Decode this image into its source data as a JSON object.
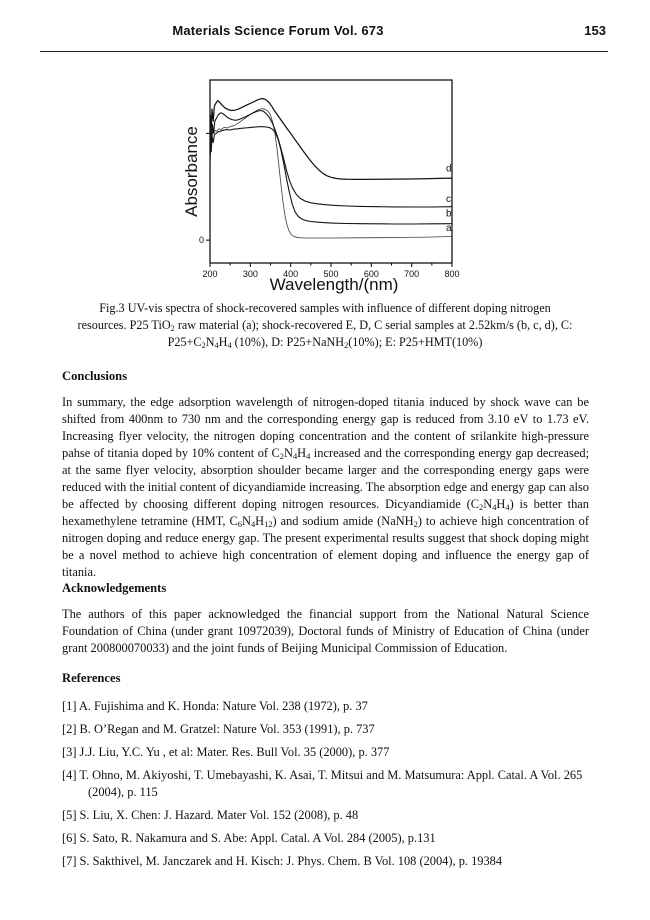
{
  "page": {
    "header": {
      "journal": "Materials Science Forum Vol. 673",
      "page_number": "153"
    }
  },
  "figure": {
    "caption_lines": [
      "Fig.3 UV-vis spectra of shock-recovered samples with influence of different doping nitrogen",
      "resources. P25 TiO~2~ raw material (a); shock-recovered E, D, C serial samples at 2.52km/s (b, c, d), C:",
      "P25+C~2~N~4~H~4~ (10%), D: P25+NaNH~2~(10%); E: P25+HMT(10%)"
    ]
  },
  "chart_data": {
    "type": "line",
    "title": "",
    "xlabel": "Wavelength/(nm)",
    "ylabel": "Absorbance",
    "xlim": [
      200,
      800
    ],
    "ylim": [
      -0.15,
      1.05
    ],
    "x_ticks": [
      200,
      300,
      400,
      500,
      600,
      700,
      800
    ],
    "x_minor_ticks": [
      250,
      350,
      450,
      550,
      650,
      750
    ],
    "y_ticks": [
      {
        "value": 0,
        "label": "0"
      },
      {
        "value": 0.7,
        "label": ""
      }
    ],
    "grid": false,
    "legend_position": "curve-labels-right",
    "axis_color": "#000000",
    "series": [
      {
        "name": "a",
        "description": "P25 TiO2 raw material",
        "color": "#3c3c3c",
        "width": 0.8,
        "label_x": 785,
        "label_y": 0.06,
        "points": [
          [
            200,
            0.52
          ],
          [
            201,
            0.74
          ],
          [
            202,
            0.6
          ],
          [
            203,
            0.72
          ],
          [
            205,
            0.66
          ],
          [
            207,
            0.73
          ],
          [
            210,
            0.7
          ],
          [
            213,
            0.72
          ],
          [
            217,
            0.715
          ],
          [
            222,
            0.73
          ],
          [
            228,
            0.725
          ],
          [
            235,
            0.74
          ],
          [
            242,
            0.735
          ],
          [
            250,
            0.745
          ],
          [
            258,
            0.75
          ],
          [
            266,
            0.76
          ],
          [
            274,
            0.775
          ],
          [
            282,
            0.79
          ],
          [
            290,
            0.805
          ],
          [
            298,
            0.82
          ],
          [
            306,
            0.835
          ],
          [
            314,
            0.848
          ],
          [
            322,
            0.857
          ],
          [
            330,
            0.862
          ],
          [
            337,
            0.858
          ],
          [
            344,
            0.845
          ],
          [
            350,
            0.82
          ],
          [
            356,
            0.77
          ],
          [
            361,
            0.7
          ],
          [
            366,
            0.6
          ],
          [
            371,
            0.48
          ],
          [
            376,
            0.36
          ],
          [
            381,
            0.25
          ],
          [
            386,
            0.16
          ],
          [
            391,
            0.1
          ],
          [
            396,
            0.06
          ],
          [
            402,
            0.035
          ],
          [
            410,
            0.022
          ],
          [
            420,
            0.016
          ],
          [
            440,
            0.014
          ],
          [
            470,
            0.014
          ],
          [
            510,
            0.014
          ],
          [
            560,
            0.015
          ],
          [
            620,
            0.016
          ],
          [
            680,
            0.018
          ],
          [
            740,
            0.02
          ],
          [
            800,
            0.024
          ]
        ]
      },
      {
        "name": "b",
        "description": "shock-recovered sample b at 2.52km/s",
        "color": "#141414",
        "width": 1.1,
        "label_x": 785,
        "label_y": 0.155,
        "points": [
          [
            200,
            0.48
          ],
          [
            201,
            0.66
          ],
          [
            203,
            0.58
          ],
          [
            205,
            0.68
          ],
          [
            208,
            0.64
          ],
          [
            211,
            0.69
          ],
          [
            215,
            0.7
          ],
          [
            220,
            0.71
          ],
          [
            226,
            0.715
          ],
          [
            233,
            0.72
          ],
          [
            241,
            0.725
          ],
          [
            250,
            0.722
          ],
          [
            259,
            0.728
          ],
          [
            268,
            0.73
          ],
          [
            277,
            0.733
          ],
          [
            286,
            0.735
          ],
          [
            295,
            0.737
          ],
          [
            304,
            0.74
          ],
          [
            313,
            0.742
          ],
          [
            322,
            0.744
          ],
          [
            331,
            0.744
          ],
          [
            340,
            0.742
          ],
          [
            348,
            0.737
          ],
          [
            355,
            0.727
          ],
          [
            362,
            0.705
          ],
          [
            369,
            0.66
          ],
          [
            376,
            0.59
          ],
          [
            383,
            0.5
          ],
          [
            390,
            0.4
          ],
          [
            397,
            0.31
          ],
          [
            404,
            0.235
          ],
          [
            411,
            0.185
          ],
          [
            419,
            0.155
          ],
          [
            428,
            0.138
          ],
          [
            438,
            0.128
          ],
          [
            450,
            0.122
          ],
          [
            465,
            0.118
          ],
          [
            485,
            0.114
          ],
          [
            510,
            0.111
          ],
          [
            540,
            0.109
          ],
          [
            575,
            0.108
          ],
          [
            615,
            0.107
          ],
          [
            660,
            0.106
          ],
          [
            705,
            0.106
          ],
          [
            750,
            0.107
          ],
          [
            800,
            0.108
          ]
        ]
      },
      {
        "name": "c",
        "description": "shock-recovered sample c at 2.52km/s",
        "color": "#141414",
        "width": 1.1,
        "label_x": 785,
        "label_y": 0.25,
        "points": [
          [
            200,
            0.52
          ],
          [
            202,
            0.72
          ],
          [
            204,
            0.64
          ],
          [
            206,
            0.76
          ],
          [
            209,
            0.7
          ],
          [
            212,
            0.78
          ],
          [
            216,
            0.8
          ],
          [
            221,
            0.824
          ],
          [
            227,
            0.835
          ],
          [
            233,
            0.828
          ],
          [
            240,
            0.812
          ],
          [
            247,
            0.798
          ],
          [
            255,
            0.79
          ],
          [
            263,
            0.786
          ],
          [
            271,
            0.79
          ],
          [
            280,
            0.8
          ],
          [
            289,
            0.81
          ],
          [
            298,
            0.822
          ],
          [
            307,
            0.834
          ],
          [
            316,
            0.844
          ],
          [
            324,
            0.85
          ],
          [
            332,
            0.846
          ],
          [
            340,
            0.828
          ],
          [
            348,
            0.8
          ],
          [
            355,
            0.765
          ],
          [
            362,
            0.72
          ],
          [
            369,
            0.665
          ],
          [
            376,
            0.6
          ],
          [
            383,
            0.53
          ],
          [
            390,
            0.455
          ],
          [
            397,
            0.39
          ],
          [
            405,
            0.34
          ],
          [
            414,
            0.3
          ],
          [
            424,
            0.273
          ],
          [
            436,
            0.256
          ],
          [
            450,
            0.245
          ],
          [
            466,
            0.238
          ],
          [
            486,
            0.232
          ],
          [
            510,
            0.228
          ],
          [
            540,
            0.224
          ],
          [
            575,
            0.221
          ],
          [
            615,
            0.219
          ],
          [
            660,
            0.218
          ],
          [
            705,
            0.217
          ],
          [
            750,
            0.217
          ],
          [
            800,
            0.219
          ]
        ]
      },
      {
        "name": "d",
        "description": "shock-recovered sample d at 2.52km/s",
        "color": "#141414",
        "width": 1.25,
        "label_x": 785,
        "label_y": 0.45,
        "points": [
          [
            200,
            0.56
          ],
          [
            201,
            0.82
          ],
          [
            203,
            0.72
          ],
          [
            205,
            0.86
          ],
          [
            208,
            0.78
          ],
          [
            211,
            0.88
          ],
          [
            215,
            0.9
          ],
          [
            219,
            0.915
          ],
          [
            224,
            0.905
          ],
          [
            230,
            0.885
          ],
          [
            237,
            0.868
          ],
          [
            245,
            0.856
          ],
          [
            253,
            0.85
          ],
          [
            261,
            0.852
          ],
          [
            269,
            0.858
          ],
          [
            277,
            0.868
          ],
          [
            285,
            0.878
          ],
          [
            293,
            0.888
          ],
          [
            301,
            0.898
          ],
          [
            309,
            0.908
          ],
          [
            317,
            0.918
          ],
          [
            325,
            0.926
          ],
          [
            332,
            0.928
          ],
          [
            339,
            0.92
          ],
          [
            346,
            0.903
          ],
          [
            353,
            0.878
          ],
          [
            360,
            0.848
          ],
          [
            368,
            0.818
          ],
          [
            376,
            0.788
          ],
          [
            384,
            0.758
          ],
          [
            392,
            0.728
          ],
          [
            400,
            0.7
          ],
          [
            410,
            0.662
          ],
          [
            420,
            0.625
          ],
          [
            430,
            0.588
          ],
          [
            440,
            0.552
          ],
          [
            450,
            0.518
          ],
          [
            460,
            0.487
          ],
          [
            470,
            0.46
          ],
          [
            480,
            0.438
          ],
          [
            490,
            0.422
          ],
          [
            500,
            0.412
          ],
          [
            512,
            0.405
          ],
          [
            525,
            0.401
          ],
          [
            540,
            0.399
          ],
          [
            560,
            0.398
          ],
          [
            585,
            0.398
          ],
          [
            615,
            0.399
          ],
          [
            650,
            0.4
          ],
          [
            690,
            0.401
          ],
          [
            730,
            0.403
          ],
          [
            770,
            0.405
          ],
          [
            800,
            0.407
          ]
        ]
      }
    ]
  },
  "sections": {
    "conclusions": {
      "heading": "Conclusions",
      "body": "In summary, the edge adsorption wavelength of nitrogen-doped titania induced by shock wave can be shifted from 400nm to 730 nm and the corresponding energy gap is reduced from 3.10 eV to 1.73 eV. Increasing flyer velocity, the nitrogen doping concentration and the content of srilankite high-pressure pahse of titania doped by 10% content of C~2~N~4~H~4~ increased and the corresponding energy gap decreased; at the same flyer velocity, absorption shoulder became larger and the corresponding energy gaps were reduced with the initial content of dicyandiamide increasing. The absorption edge and energy gap can also be affected by choosing different doping nitrogen resources. Dicyandiamide (C~2~N~4~H~4~) is better than hexamethylene tetramine (HMT, C~6~N~4~H~12~) and sodium amide (NaNH~2~) to achieve high concentration of nitrogen doping and reduce energy gap. The present experimental results suggest that shock doping might be a novel method to achieve high concentration of element doping and influence the energy gap of titania."
    },
    "acknowledgements": {
      "heading": "Acknowledgements",
      "body": "The authors of this paper acknowledged the financial support from the National Natural Science Foundation of China (under grant 10972039), Doctoral funds of Ministry of Education of China (under grant 200800070033) and the joint funds of Beijing Municipal Commission of Education."
    },
    "references": {
      "heading": "References",
      "items": [
        "[1] A. Fujishima and K. Honda: Nature Vol. 238 (1972), p. 37",
        "[2] B. O’Regan and M. Gratzel: Nature Vol. 353 (1991), p. 737",
        "[3] J.J. Liu, Y.C. Yu , et al: Mater. Res. Bull Vol. 35 (2000), p. 377",
        "[4] T. Ohno, M. Akiyoshi, T. Umebayashi, K. Asai, T. Mitsui and M. Matsumura: Appl. Catal. A Vol. 265 (2004), p. 115",
        "[5] S. Liu, X. Chen: J. Hazard. Mater Vol. 152 (2008), p. 48",
        "[6] S. Sato, R. Nakamura and S. Abe: Appl. Catal. A Vol. 284 (2005), p.131",
        "[7] S. Sakthivel, M. Janczarek and H. Kisch: J. Phys. Chem. B Vol. 108 (2004), p. 19384"
      ]
    }
  }
}
